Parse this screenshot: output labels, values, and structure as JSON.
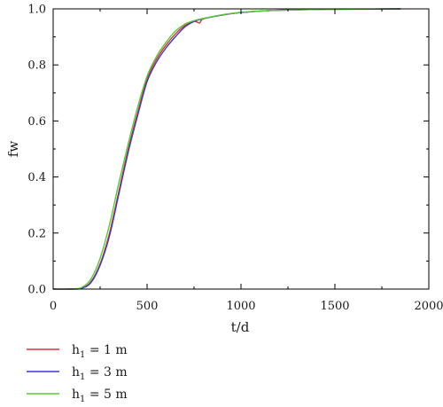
{
  "chart_data": {
    "type": "line",
    "xlabel": "t/d",
    "ylabel": "fw",
    "xlim": [
      0,
      2000
    ],
    "ylim": [
      0,
      1.0
    ],
    "x_ticks": [
      0,
      500,
      1000,
      1500,
      2000
    ],
    "y_ticks": [
      0.0,
      0.2,
      0.4,
      0.6,
      0.8,
      1.0
    ],
    "x_tick_labels": [
      "0",
      "500",
      "1000",
      "1500",
      "2000"
    ],
    "y_tick_labels": [
      "0.0",
      "0.2",
      "0.4",
      "0.6",
      "0.8",
      "1.0"
    ],
    "grid": false,
    "legend_position": "bottom-left, below plot",
    "series": [
      {
        "name": "h1 = 1 m",
        "legend_main": "h",
        "legend_sub": "1",
        "legend_rest": " = 1 m",
        "color": "#e0303a",
        "x": [
          0,
          100,
          150,
          200,
          250,
          300,
          350,
          400,
          450,
          500,
          550,
          600,
          650,
          700,
          750,
          780,
          800,
          900,
          1000,
          1100,
          1200,
          1400,
          1600,
          1850
        ],
        "y": [
          0,
          0,
          0.003,
          0.025,
          0.09,
          0.2,
          0.35,
          0.5,
          0.63,
          0.75,
          0.82,
          0.87,
          0.91,
          0.94,
          0.955,
          0.95,
          0.965,
          0.978,
          0.987,
          0.992,
          0.995,
          0.998,
          0.999,
          1.0
        ]
      },
      {
        "name": "h1 = 3 m",
        "legend_main": "h",
        "legend_sub": "1",
        "legend_rest": " = 3 m",
        "color": "#3a3ac8",
        "x": [
          0,
          100,
          150,
          200,
          250,
          300,
          350,
          400,
          450,
          500,
          550,
          600,
          650,
          700,
          750,
          800,
          900,
          1000,
          1100,
          1200,
          1400,
          1600,
          1850
        ],
        "y": [
          0,
          0,
          0.003,
          0.022,
          0.085,
          0.19,
          0.34,
          0.49,
          0.62,
          0.74,
          0.81,
          0.86,
          0.9,
          0.935,
          0.955,
          0.965,
          0.978,
          0.987,
          0.992,
          0.995,
          0.998,
          0.999,
          1.0
        ]
      },
      {
        "name": "h1 = 5 m",
        "legend_main": "h",
        "legend_sub": "1",
        "legend_rest": " = 5 m",
        "color": "#55cc33",
        "x": [
          0,
          100,
          150,
          200,
          250,
          300,
          350,
          400,
          450,
          500,
          550,
          600,
          650,
          700,
          750,
          800,
          900,
          1000,
          1100,
          1200,
          1400,
          1600,
          1850
        ],
        "y": [
          0,
          0,
          0.005,
          0.035,
          0.11,
          0.23,
          0.38,
          0.52,
          0.65,
          0.76,
          0.83,
          0.88,
          0.92,
          0.945,
          0.958,
          0.966,
          0.979,
          0.988,
          0.992,
          0.995,
          0.998,
          0.999,
          1.0
        ]
      }
    ]
  }
}
